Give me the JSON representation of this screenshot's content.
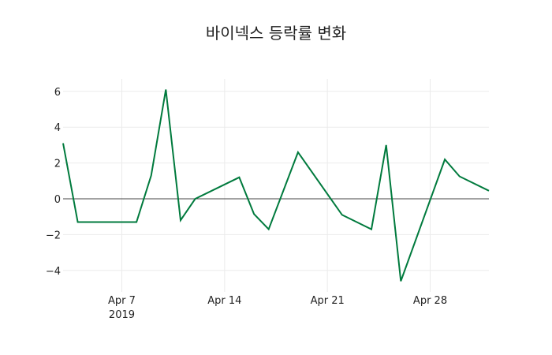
{
  "chart_data": {
    "type": "line",
    "title": "바이넥스 등락률 변화",
    "xlabel": "",
    "ylabel": "",
    "x_tick_labels": [
      "Apr 7\n2019",
      "Apr 14",
      "Apr 21",
      "Apr 28"
    ],
    "y_tick_labels": [
      "−4",
      "−2",
      "0",
      "2",
      "4",
      "6"
    ],
    "ylim": [
      -5.0,
      6.6
    ],
    "xlim": [
      "2019-04-03",
      "2019-05-02"
    ],
    "grid": true,
    "zero_line": true,
    "line_color": "#007a3d",
    "series": [
      {
        "name": "등락률",
        "x": [
          "2019-04-03",
          "2019-04-04",
          "2019-04-08",
          "2019-04-09",
          "2019-04-10",
          "2019-04-11",
          "2019-04-12",
          "2019-04-15",
          "2019-04-16",
          "2019-04-17",
          "2019-04-19",
          "2019-04-22",
          "2019-04-24",
          "2019-04-25",
          "2019-04-26",
          "2019-04-29",
          "2019-04-30",
          "2019-05-02"
        ],
        "values": [
          3.1,
          -1.3,
          -1.3,
          1.3,
          6.1,
          -1.2,
          0.0,
          1.2,
          -0.85,
          -1.7,
          2.6,
          -0.9,
          -1.7,
          3.0,
          -4.6,
          2.2,
          1.25,
          0.45
        ]
      }
    ]
  },
  "labels": {
    "title": "바이넥스 등락률 변화",
    "x_ticks": [
      "Apr 7",
      "Apr 14",
      "Apr 21",
      "Apr 28"
    ],
    "x_year": "2019",
    "y_ticks": [
      "6",
      "4",
      "2",
      "0",
      "−2",
      "−4"
    ]
  }
}
